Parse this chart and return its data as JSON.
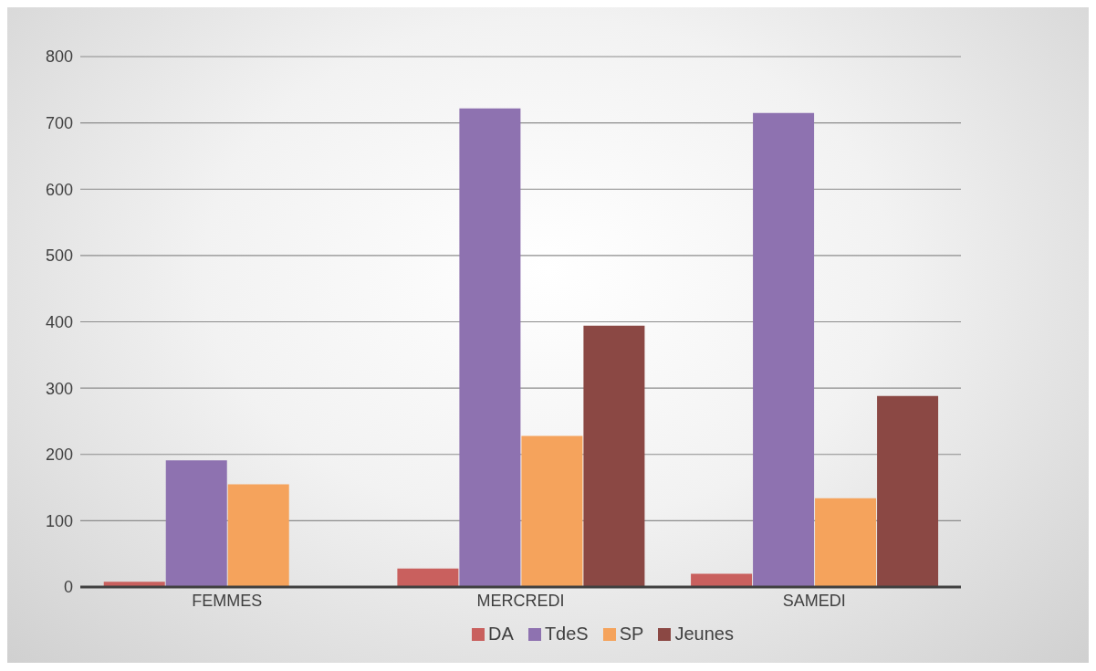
{
  "chart_data": {
    "type": "bar",
    "categories": [
      "FEMMES",
      "MERCREDI",
      "SAMEDI"
    ],
    "series": [
      {
        "name": "DA",
        "color": "#c9605e",
        "values": [
          8,
          28,
          20
        ]
      },
      {
        "name": "TdeS",
        "color": "#8e72b0",
        "values": [
          191,
          722,
          715
        ]
      },
      {
        "name": "SP",
        "color": "#f5a35c",
        "values": [
          155,
          228,
          134
        ]
      },
      {
        "name": "Jeunes",
        "color": "#8b4844",
        "values": [
          null,
          394,
          288
        ]
      }
    ],
    "ylim": [
      0,
      800
    ],
    "yticks": [
      0,
      100,
      200,
      300,
      400,
      500,
      600,
      700,
      800
    ],
    "grid": "y",
    "legend": "bottom"
  }
}
